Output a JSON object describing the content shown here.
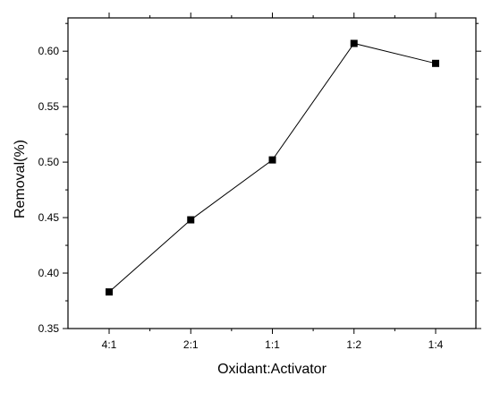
{
  "chart_data": {
    "type": "line",
    "categories": [
      "4:1",
      "2:1",
      "1:1",
      "1:2",
      "1:4"
    ],
    "series": [
      {
        "values": [
          0.383,
          0.448,
          0.502,
          0.607,
          0.589
        ]
      }
    ],
    "xlabel": "Oxidant:Activator",
    "ylabel": "Removal(%)",
    "ylim": [
      0.35,
      0.63
    ],
    "yticks": [
      "0.35",
      "0.40",
      "0.45",
      "0.50",
      "0.55",
      "0.60"
    ],
    "grid": false,
    "marker": "square",
    "line_color": "#000000"
  }
}
